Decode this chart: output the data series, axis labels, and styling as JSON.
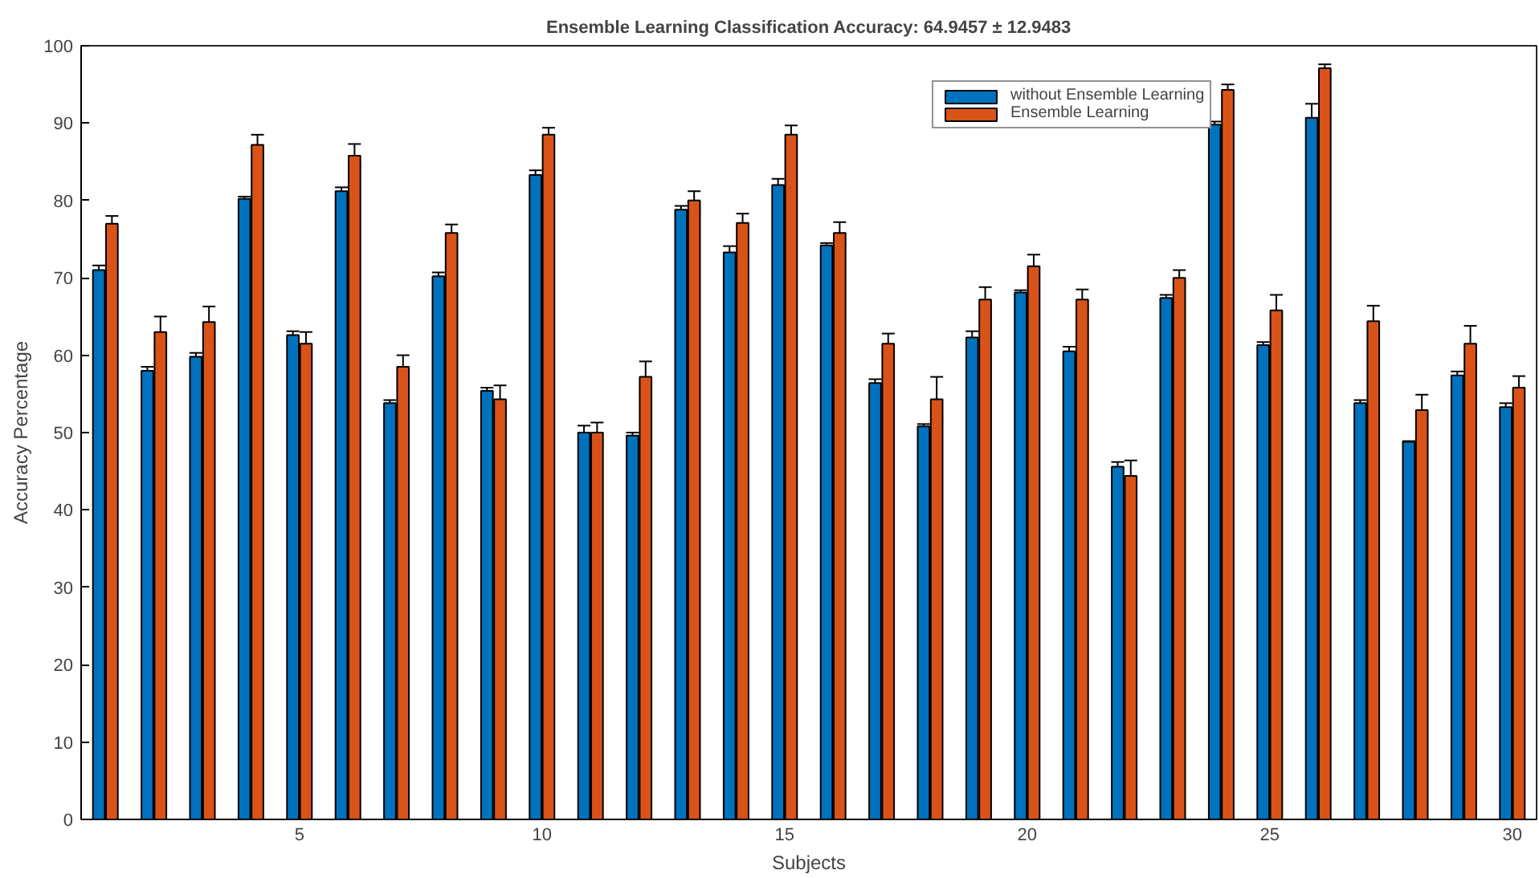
{
  "chart_data": {
    "type": "bar",
    "title": "Ensemble Learning Classification Accuracy: 64.9457 ± 12.9483",
    "xlabel": "Subjects",
    "ylabel": "Accuracy Percentage",
    "x": [
      1,
      2,
      3,
      4,
      5,
      6,
      7,
      8,
      9,
      10,
      11,
      12,
      13,
      14,
      15,
      16,
      17,
      18,
      19,
      20,
      21,
      22,
      23,
      24,
      25,
      26,
      27,
      28,
      29,
      30
    ],
    "series": [
      {
        "name": "without Ensemble Learning",
        "color": "#0072bd",
        "values": [
          71,
          58,
          59.8,
          80.2,
          62.6,
          81.2,
          53.8,
          70.2,
          55.4,
          83.3,
          50,
          49.6,
          78.8,
          73.3,
          82,
          74.2,
          56.4,
          50.8,
          62.3,
          68.1,
          60.5,
          45.6,
          67.4,
          89.8,
          61.3,
          90.7,
          53.8,
          48.8,
          57.4,
          53.3
        ],
        "errors": [
          0.6,
          0.5,
          0.5,
          0.3,
          0.5,
          0.5,
          0.4,
          0.5,
          0.4,
          0.6,
          0.9,
          0.4,
          0.5,
          0.8,
          0.8,
          0.3,
          0.5,
          0.3,
          0.8,
          0.3,
          0.6,
          0.6,
          0.4,
          0.4,
          0.4,
          1.8,
          0.4,
          0.1,
          0.5,
          0.5
        ]
      },
      {
        "name": "Ensemble Learning",
        "color": "#d95319",
        "values": [
          77,
          63,
          64.3,
          87.2,
          61.5,
          85.8,
          58.5,
          75.8,
          54.3,
          88.5,
          50,
          57.2,
          80,
          77.1,
          88.5,
          75.8,
          61.5,
          54.3,
          67.2,
          71.5,
          67.2,
          44.4,
          70,
          94.3,
          65.8,
          97.1,
          64.4,
          52.9,
          61.5,
          55.8
        ],
        "errors": [
          1,
          2,
          2,
          1.3,
          1.5,
          1.5,
          1.5,
          1.1,
          1.8,
          0.9,
          1.3,
          2,
          1.2,
          1.2,
          1.2,
          1.4,
          1.3,
          2.9,
          1.6,
          1.5,
          1.3,
          2,
          1,
          0.7,
          2,
          0.5,
          2,
          2,
          2.3,
          1.5
        ]
      }
    ],
    "xlim": [
      0.5,
      30.5
    ],
    "xticks": [
      5,
      10,
      15,
      20,
      25,
      30
    ],
    "ylim": [
      0,
      100
    ],
    "yticks": [
      0,
      10,
      20,
      30,
      40,
      50,
      60,
      70,
      80,
      90,
      100
    ],
    "grid": false,
    "legend": "top right"
  }
}
